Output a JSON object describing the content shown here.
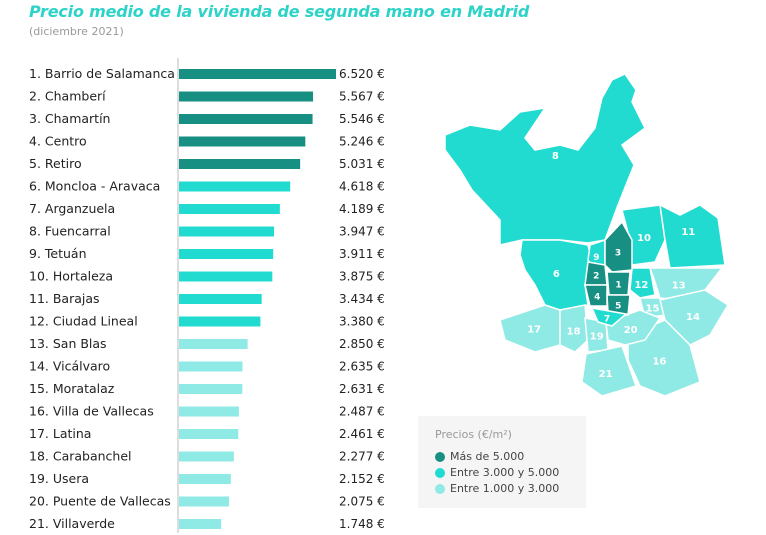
{
  "title": "Precio medio de la vivienda de segunda mano en Madrid",
  "subtitle": "(diciembre 2021)",
  "colors": {
    "high": "#178f83",
    "mid": "#22dbd0",
    "low": "#8fe9e4"
  },
  "chart_data": {
    "type": "bar",
    "orientation": "horizontal",
    "categories": [
      "1. Barrio de Salamanca",
      "2. Chamberí",
      "3. Chamartín",
      "4. Centro",
      "5. Retiro",
      "6. Moncloa - Aravaca",
      "7. Arganzuela",
      "8. Fuencarral",
      "9. Tetuán",
      "10. Hortaleza",
      "11. Barajas",
      "12. Ciudad Lineal",
      "13. San Blas",
      "14. Vicálvaro",
      "15. Moratalaz",
      "16. Villa de Vallecas",
      "17. Latina",
      "18. Carabanchel",
      "19. Usera",
      "20. Puente de Vallecas",
      "21. Villaverde"
    ],
    "values": [
      6520,
      5567,
      5546,
      5246,
      5031,
      4618,
      4189,
      3947,
      3911,
      3875,
      3434,
      3380,
      2850,
      2635,
      2631,
      2487,
      2461,
      2277,
      2152,
      2075,
      1748
    ],
    "value_labels": [
      "6.520 €",
      "5.567 €",
      "5.546 €",
      "5.246 €",
      "5.031 €",
      "4.618 €",
      "4.189 €",
      "3.947 €",
      "3.911 €",
      "3.875 €",
      "3.434 €",
      "3.380 €",
      "2.850 €",
      "2.635 €",
      "2.631 €",
      "2.487 €",
      "2.461 €",
      "2.277 €",
      "2.152 €",
      "2.075 €",
      "1.748 €"
    ],
    "xlim": [
      0,
      6520
    ]
  },
  "legend": {
    "title": "Precios (€/m²)",
    "items": [
      {
        "label": "Más de 5.000",
        "tier": "high"
      },
      {
        "label": "Entre 3.000 y 5.000",
        "tier": "mid"
      },
      {
        "label": "Entre 1.000 y 3.000",
        "tier": "low"
      }
    ]
  },
  "map": {
    "district_labels": [
      "1",
      "2",
      "3",
      "4",
      "5",
      "6",
      "7",
      "8",
      "9",
      "10",
      "11",
      "12",
      "13",
      "14",
      "15",
      "16",
      "17",
      "18",
      "19",
      "20",
      "21"
    ]
  }
}
